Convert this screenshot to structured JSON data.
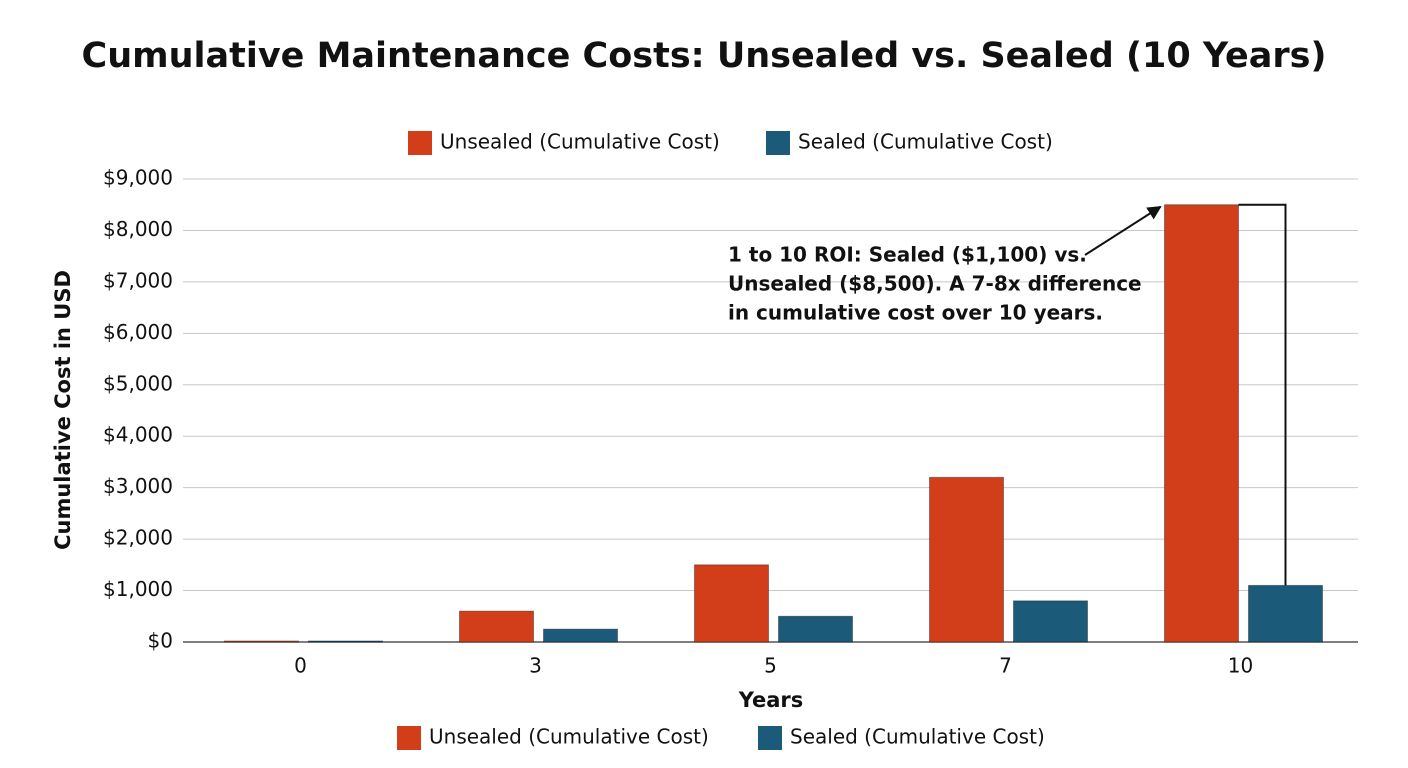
{
  "chart_data": {
    "type": "bar",
    "title": "Cumulative Maintenance Costs: Unsealed vs. Sealed (10 Years)",
    "x_label": "Years",
    "y_label": "Cumulative Cost in USD",
    "categories": [
      "0",
      "3",
      "5",
      "7",
      "10"
    ],
    "series": [
      {
        "name": "Unsealed (Cumulative Cost)",
        "color": "#d23d1a",
        "values": [
          20,
          600,
          1500,
          3200,
          8500
        ]
      },
      {
        "name": "Sealed (Cumulative Cost)",
        "color": "#1b5a78",
        "values": [
          20,
          250,
          500,
          800,
          1100
        ]
      }
    ],
    "ylim": [
      0,
      9000
    ],
    "yticks": [
      {
        "value": 0,
        "label": "$0"
      },
      {
        "value": 1000,
        "label": "$1,000"
      },
      {
        "value": 2000,
        "label": "$2,000"
      },
      {
        "value": 3000,
        "label": "$3,000"
      },
      {
        "value": 4000,
        "label": "$4,000"
      },
      {
        "value": 5000,
        "label": "$5,000"
      },
      {
        "value": 6000,
        "label": "$6,000"
      },
      {
        "value": 7000,
        "label": "$7,000"
      },
      {
        "value": 8000,
        "label": "$8,000"
      },
      {
        "value": 9000,
        "label": "$9,000"
      }
    ],
    "grid": true,
    "annotation": [
      "1 to 10 ROI: Sealed ($1,100) vs.",
      "Unsealed ($8,500). A 7-8x difference",
      "in cumulative cost over 10 years."
    ]
  }
}
